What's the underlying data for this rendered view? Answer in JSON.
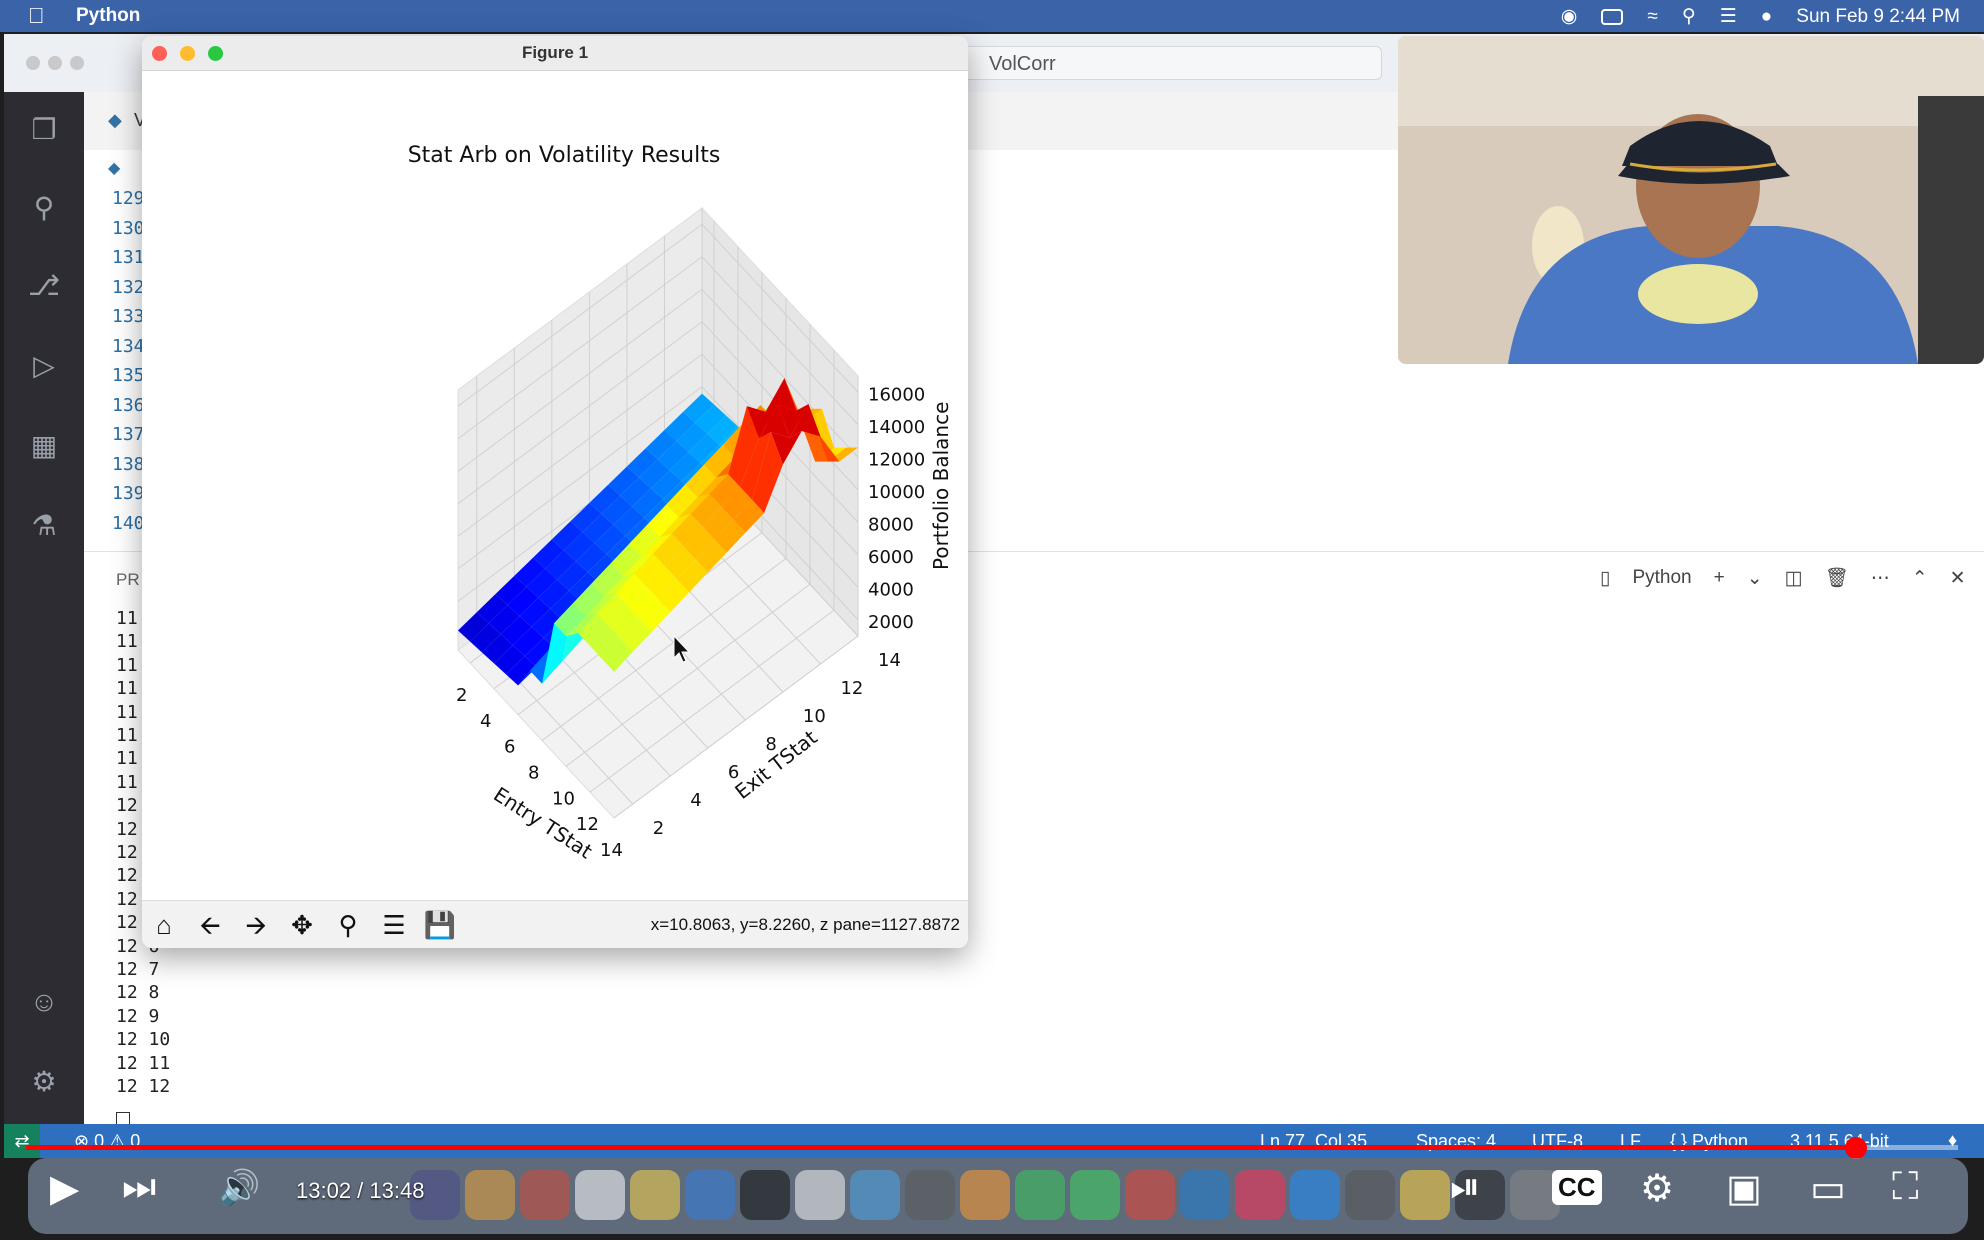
{
  "menubar": {
    "app_name": "Python",
    "datetime": "Sun Feb 9  2:44 PM"
  },
  "vscode": {
    "search_text": "VolCorr",
    "tab_label": "V",
    "line_numbers": [
      "129",
      "130",
      "131",
      "132",
      "133",
      "134",
      "135",
      "136",
      "137",
      "138",
      "139",
      "140"
    ],
    "panel_label": "PR",
    "terminal_lines": [
      "11",
      "11",
      "11",
      "11",
      "11",
      "11",
      "11",
      "11",
      "12",
      "12",
      "12",
      "12",
      "12",
      "12",
      "12 6",
      "12 7",
      "12 8",
      "12 9",
      "12 10",
      "12 11",
      "12 12"
    ],
    "terminal_name": "Python",
    "status": {
      "problems": "⊗ 0 ⚠ 0",
      "position": "Ln 77, Col 35",
      "spaces": "Spaces: 4",
      "encoding": "UTF-8",
      "eol": "LF",
      "language": "{ } Python",
      "interpreter": "3.11.5 64-bit"
    }
  },
  "figure": {
    "window_title": "Figure 1",
    "coords_readout": "x=10.8063, y=8.2260, z pane=1127.8872",
    "toolbar": [
      "home-icon",
      "back-arrow-icon",
      "forward-arrow-icon",
      "pan-icon",
      "zoom-icon",
      "configure-icon",
      "save-icon"
    ]
  },
  "chart_data": {
    "type": "surface3d",
    "title": "Stat Arb on Volatility Results",
    "xlabel": "Entry TStat",
    "ylabel": "Exit TStat",
    "zlabel": "Portfolio Balance",
    "x_ticks": [
      2,
      4,
      6,
      8,
      10,
      12,
      14
    ],
    "y_ticks": [
      2,
      4,
      6,
      8,
      10,
      12,
      14
    ],
    "z_ticks": [
      2000,
      4000,
      6000,
      8000,
      10000,
      12000,
      14000,
      16000
    ],
    "xlim": [
      1,
      14
    ],
    "ylim": [
      1,
      14
    ],
    "zlim": [
      1000,
      17000
    ],
    "colormap": "jet",
    "grid": true,
    "x": [
      1,
      2,
      3,
      4,
      5,
      6,
      7,
      8,
      9,
      10,
      11,
      12,
      13,
      14
    ],
    "y": [
      1,
      2,
      3,
      4,
      5,
      6,
      7,
      8,
      9,
      10,
      11,
      12,
      13,
      14
    ]
  },
  "youtube": {
    "timecode": "13:02 / 13:48",
    "progress_fraction": 0.947
  }
}
